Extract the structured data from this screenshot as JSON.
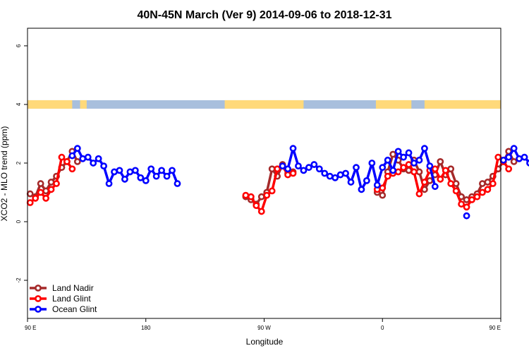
{
  "chart_data": {
    "type": "line",
    "title": "40N-45N March (Ver 9)   2014-09-06 to 2018-12-31",
    "xlabel": "Longitude",
    "ylabel": "XCO2 - MLO trend (ppm)",
    "xlim": [
      90,
      450
    ],
    "ylim": [
      -3.3,
      6.6
    ],
    "x_ticks": [
      {
        "value": 90,
        "label": "90 E"
      },
      {
        "value": 180,
        "label": "180"
      },
      {
        "value": 270,
        "label": "90 W"
      },
      {
        "value": 360,
        "label": "0"
      },
      {
        "value": 450,
        "label": "90 E"
      },
      {
        "value": 540,
        "label": "180"
      }
    ],
    "y_ticks": [
      {
        "value": -2,
        "label": "-2"
      },
      {
        "value": 0,
        "label": "0"
      },
      {
        "value": 2,
        "label": "2"
      },
      {
        "value": 4,
        "label": "4"
      },
      {
        "value": 6,
        "label": "6"
      }
    ],
    "legend_position": "bottom-left",
    "land_ocean_band": {
      "y": 4,
      "land_color": "#FFD97A",
      "ocean_color": "#A8BFDD",
      "land_ranges": [
        [
          90,
          124
        ],
        [
          130,
          135
        ],
        [
          240,
          300
        ],
        [
          355,
          382
        ],
        [
          392,
          485
        ],
        [
          491,
          495
        ]
      ]
    },
    "series": [
      {
        "name": "Land Nadir",
        "color": "#A52A2A",
        "points": [
          [
            92,
            0.95
          ],
          [
            96,
            0.85
          ],
          [
            100,
            1.3
          ],
          [
            104,
            1.05
          ],
          [
            108,
            1.35
          ],
          [
            112,
            1.55
          ],
          [
            116,
            1.85
          ],
          [
            120,
            2.05
          ],
          [
            124,
            2.4
          ],
          [
            128,
            2.05
          ],
          [
            256,
            0.85
          ],
          [
            260,
            0.75
          ],
          [
            264,
            0.6
          ],
          [
            268,
            0.85
          ],
          [
            272,
            1.0
          ],
          [
            276,
            1.8
          ],
          [
            280,
            1.55
          ],
          [
            284,
            1.95
          ],
          [
            288,
            1.65
          ],
          [
            292,
            1.7
          ],
          [
            356,
            1.0
          ],
          [
            360,
            0.9
          ],
          [
            364,
            1.7
          ],
          [
            368,
            2.3
          ],
          [
            372,
            2.1
          ],
          [
            376,
            1.8
          ],
          [
            380,
            1.75
          ],
          [
            384,
            2.1
          ],
          [
            388,
            1.7
          ],
          [
            392,
            1.1
          ],
          [
            396,
            1.4
          ],
          [
            400,
            1.6
          ],
          [
            404,
            2.05
          ],
          [
            408,
            1.6
          ],
          [
            412,
            1.8
          ],
          [
            416,
            1.3
          ],
          [
            420,
            0.85
          ],
          [
            424,
            0.75
          ],
          [
            428,
            0.85
          ],
          [
            432,
            0.95
          ],
          [
            436,
            1.3
          ],
          [
            440,
            1.35
          ],
          [
            444,
            1.55
          ],
          [
            448,
            1.8
          ],
          [
            452,
            2.05
          ],
          [
            456,
            2.4
          ],
          [
            460,
            2.05
          ]
        ]
      },
      {
        "name": "Land Glint",
        "color": "#FF0000",
        "points": [
          [
            92,
            0.65
          ],
          [
            96,
            0.8
          ],
          [
            100,
            1.0
          ],
          [
            104,
            0.8
          ],
          [
            108,
            1.1
          ],
          [
            112,
            1.3
          ],
          [
            116,
            2.2
          ],
          [
            120,
            2.05
          ],
          [
            124,
            1.8
          ],
          [
            256,
            0.9
          ],
          [
            260,
            0.85
          ],
          [
            264,
            0.55
          ],
          [
            268,
            0.35
          ],
          [
            272,
            0.9
          ],
          [
            276,
            1.05
          ],
          [
            280,
            1.8
          ],
          [
            284,
            1.9
          ],
          [
            288,
            1.6
          ],
          [
            292,
            1.65
          ],
          [
            356,
            1.1
          ],
          [
            360,
            1.15
          ],
          [
            364,
            1.55
          ],
          [
            368,
            1.65
          ],
          [
            372,
            1.7
          ],
          [
            376,
            1.85
          ],
          [
            380,
            1.95
          ],
          [
            384,
            1.7
          ],
          [
            388,
            0.95
          ],
          [
            392,
            1.35
          ],
          [
            396,
            1.75
          ],
          [
            400,
            1.8
          ],
          [
            404,
            1.45
          ],
          [
            408,
            1.75
          ],
          [
            412,
            1.3
          ],
          [
            416,
            1.05
          ],
          [
            420,
            0.6
          ],
          [
            424,
            0.5
          ],
          [
            428,
            0.75
          ],
          [
            432,
            0.85
          ],
          [
            436,
            1.0
          ],
          [
            440,
            1.1
          ],
          [
            444,
            1.3
          ],
          [
            448,
            2.2
          ],
          [
            452,
            2.05
          ],
          [
            456,
            1.8
          ]
        ]
      },
      {
        "name": "Ocean Glint",
        "color": "#0000FF",
        "points": [
          [
            124,
            2.25
          ],
          [
            128,
            2.5
          ],
          [
            132,
            2.15
          ],
          [
            136,
            2.2
          ],
          [
            140,
            2.0
          ],
          [
            144,
            2.15
          ],
          [
            148,
            1.9
          ],
          [
            152,
            1.3
          ],
          [
            156,
            1.7
          ],
          [
            160,
            1.75
          ],
          [
            164,
            1.45
          ],
          [
            168,
            1.7
          ],
          [
            172,
            1.75
          ],
          [
            176,
            1.5
          ],
          [
            180,
            1.4
          ],
          [
            184,
            1.8
          ],
          [
            188,
            1.55
          ],
          [
            192,
            1.75
          ],
          [
            196,
            1.55
          ],
          [
            200,
            1.75
          ],
          [
            204,
            1.3
          ],
          [
            284,
            1.9
          ],
          [
            288,
            1.8
          ],
          [
            292,
            2.5
          ],
          [
            296,
            1.9
          ],
          [
            300,
            1.75
          ],
          [
            304,
            1.85
          ],
          [
            308,
            1.95
          ],
          [
            312,
            1.8
          ],
          [
            316,
            1.65
          ],
          [
            320,
            1.55
          ],
          [
            324,
            1.5
          ],
          [
            328,
            1.6
          ],
          [
            332,
            1.65
          ],
          [
            336,
            1.35
          ],
          [
            340,
            1.85
          ],
          [
            344,
            1.1
          ],
          [
            348,
            1.4
          ],
          [
            352,
            2.0
          ],
          [
            356,
            1.25
          ],
          [
            360,
            1.85
          ],
          [
            364,
            2.1
          ],
          [
            368,
            1.75
          ],
          [
            372,
            2.4
          ],
          [
            376,
            2.2
          ],
          [
            380,
            2.35
          ],
          [
            384,
            2.0
          ],
          [
            388,
            2.1
          ],
          [
            392,
            2.5
          ],
          [
            396,
            1.9
          ],
          [
            400,
            1.2
          ],
          [
            424,
            0.2
          ],
          [
            452,
            2.1
          ],
          [
            456,
            2.2
          ],
          [
            460,
            2.5
          ],
          [
            464,
            2.15
          ],
          [
            468,
            2.2
          ],
          [
            472,
            2.0
          ],
          [
            476,
            2.15
          ],
          [
            480,
            1.9
          ],
          [
            484,
            1.3
          ],
          [
            488,
            1.7
          ]
        ]
      }
    ]
  }
}
